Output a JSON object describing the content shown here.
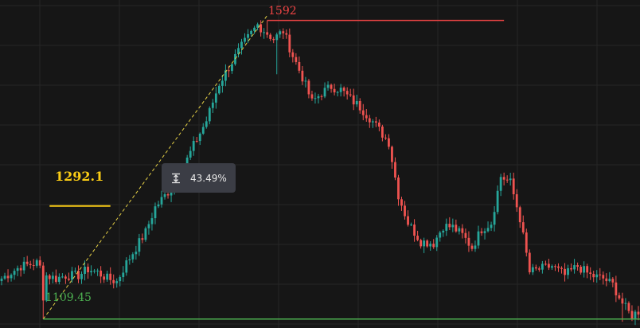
{
  "colors": {
    "background": "#161616",
    "grid": "#262626",
    "up": "#26a69a",
    "down": "#ef5350",
    "high_line": "#ef4444",
    "low_line": "#4caf50",
    "mid_line": "#facc15",
    "trend_line": "#e6d146",
    "tooltip_bg": "#3b3d45"
  },
  "levels": {
    "high": {
      "label": "1592",
      "value": 1592
    },
    "low": {
      "label": "1109.45",
      "value": 1109.45
    },
    "mid": {
      "label": "1292.1",
      "value": 1292.1
    }
  },
  "measure": {
    "icon": "vertical-measure-icon",
    "value": "43.49%"
  },
  "chart_data": {
    "type": "candlestick",
    "ylim": [
      1095,
      1625
    ],
    "grid": true,
    "x_count": 200,
    "waypoints": [
      [
        0,
        1175
      ],
      [
        6,
        1195
      ],
      [
        11,
        1200
      ],
      [
        14,
        1180
      ],
      [
        17,
        1175
      ],
      [
        20,
        1180
      ],
      [
        24,
        1180
      ],
      [
        27,
        1190
      ],
      [
        30,
        1185
      ],
      [
        33,
        1175
      ],
      [
        36,
        1170
      ],
      [
        39,
        1200
      ],
      [
        42,
        1225
      ],
      [
        45,
        1250
      ],
      [
        48,
        1290
      ],
      [
        52,
        1315
      ],
      [
        56,
        1345
      ],
      [
        60,
        1390
      ],
      [
        64,
        1430
      ],
      [
        68,
        1490
      ],
      [
        72,
        1525
      ],
      [
        75,
        1550
      ],
      [
        80,
        1585
      ],
      [
        85,
        1562
      ],
      [
        88,
        1575
      ],
      [
        91,
        1535
      ],
      [
        94,
        1500
      ],
      [
        97,
        1460
      ],
      [
        100,
        1475
      ],
      [
        103,
        1485
      ],
      [
        106,
        1480
      ],
      [
        109,
        1465
      ],
      [
        112,
        1452
      ],
      [
        115,
        1435
      ],
      [
        118,
        1415
      ],
      [
        121,
        1395
      ],
      [
        124,
        1310
      ],
      [
        127,
        1265
      ],
      [
        131,
        1235
      ],
      [
        135,
        1232
      ],
      [
        138,
        1260
      ],
      [
        141,
        1258
      ],
      [
        144,
        1245
      ],
      [
        147,
        1225
      ],
      [
        150,
        1255
      ],
      [
        153,
        1265
      ],
      [
        156,
        1340
      ],
      [
        159,
        1330
      ],
      [
        162,
        1272
      ],
      [
        165,
        1185
      ],
      [
        168,
        1190
      ],
      [
        172,
        1195
      ],
      [
        176,
        1180
      ],
      [
        180,
        1195
      ],
      [
        184,
        1180
      ],
      [
        188,
        1175
      ],
      [
        191,
        1165
      ],
      [
        194,
        1135
      ],
      [
        196,
        1120
      ],
      [
        197,
        1115
      ],
      [
        199,
        1122
      ]
    ],
    "trendline": {
      "from": [
        13,
        1109.45
      ],
      "to": [
        83,
        1600
      ]
    },
    "high_line_range": [
      83,
      157
    ],
    "mid_line_range": [
      15,
      34
    ]
  }
}
